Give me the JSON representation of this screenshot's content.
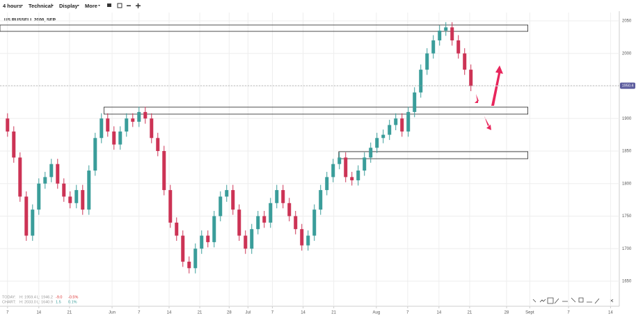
{
  "toolbar": {
    "menus": [
      "4 hours",
      "Technical",
      "Display",
      "More"
    ]
  },
  "chart_data": {
    "type": "candlestick",
    "title": "US RUSSELL 2000, SEP",
    "x": [
      0,
      1,
      2,
      3,
      4,
      5,
      6,
      7,
      8,
      9,
      10,
      11,
      12,
      13,
      14,
      15,
      16,
      17,
      18,
      19,
      20,
      21,
      22,
      23,
      24,
      25,
      26,
      27,
      28,
      29,
      30,
      31,
      32,
      33,
      34,
      35,
      36,
      37,
      38,
      39,
      40,
      41,
      42,
      43,
      44,
      45,
      46,
      47,
      48,
      49,
      50,
      51,
      52,
      53,
      54,
      55,
      56,
      57,
      58,
      59,
      60,
      61,
      62,
      63,
      64,
      65,
      66,
      67,
      68,
      69,
      70,
      71,
      72,
      73,
      74
    ],
    "open": [
      1900,
      1880,
      1840,
      1780,
      1720,
      1760,
      1800,
      1810,
      1830,
      1800,
      1780,
      1770,
      1790,
      1760,
      1820,
      1870,
      1900,
      1880,
      1860,
      1880,
      1900,
      1895,
      1910,
      1900,
      1870,
      1850,
      1790,
      1740,
      1720,
      1680,
      1670,
      1700,
      1720,
      1710,
      1750,
      1780,
      1790,
      1760,
      1720,
      1700,
      1730,
      1750,
      1740,
      1770,
      1790,
      1770,
      1750,
      1730,
      1705,
      1720,
      1760,
      1790,
      1810,
      1830,
      1840,
      1810,
      1805,
      1820,
      1840,
      1855,
      1870,
      1875,
      1890,
      1900,
      1880,
      1910,
      1940,
      1975,
      2000,
      2020,
      2035,
      2040,
      2020,
      2000,
      1975
    ],
    "high": [
      1908,
      1888,
      1848,
      1788,
      1768,
      1808,
      1818,
      1838,
      1838,
      1808,
      1788,
      1798,
      1798,
      1828,
      1878,
      1908,
      1908,
      1888,
      1888,
      1908,
      1908,
      1918,
      1918,
      1908,
      1878,
      1858,
      1798,
      1748,
      1728,
      1688,
      1708,
      1728,
      1728,
      1758,
      1788,
      1798,
      1798,
      1768,
      1728,
      1738,
      1758,
      1758,
      1778,
      1798,
      1798,
      1778,
      1758,
      1738,
      1728,
      1768,
      1798,
      1818,
      1838,
      1848,
      1848,
      1818,
      1828,
      1848,
      1863,
      1878,
      1883,
      1898,
      1908,
      1908,
      1918,
      1948,
      1983,
      2008,
      2028,
      2043,
      2048,
      2048,
      2028,
      2008,
      1983
    ],
    "low": [
      1872,
      1832,
      1772,
      1712,
      1712,
      1752,
      1792,
      1802,
      1792,
      1772,
      1762,
      1762,
      1752,
      1752,
      1812,
      1862,
      1872,
      1852,
      1852,
      1872,
      1887,
      1887,
      1892,
      1862,
      1842,
      1782,
      1732,
      1712,
      1672,
      1662,
      1662,
      1692,
      1702,
      1702,
      1742,
      1772,
      1752,
      1712,
      1692,
      1692,
      1722,
      1732,
      1732,
      1762,
      1762,
      1742,
      1722,
      1697,
      1697,
      1712,
      1752,
      1782,
      1802,
      1822,
      1802,
      1797,
      1797,
      1812,
      1832,
      1847,
      1862,
      1867,
      1882,
      1872,
      1872,
      1902,
      1932,
      1967,
      1992,
      2012,
      2027,
      2012,
      1992,
      1967,
      1942
    ],
    "close": [
      1880,
      1840,
      1780,
      1720,
      1760,
      1800,
      1810,
      1830,
      1800,
      1780,
      1770,
      1790,
      1760,
      1820,
      1870,
      1900,
      1880,
      1860,
      1880,
      1900,
      1895,
      1910,
      1900,
      1870,
      1850,
      1790,
      1740,
      1720,
      1680,
      1670,
      1700,
      1720,
      1710,
      1750,
      1780,
      1790,
      1760,
      1720,
      1700,
      1730,
      1750,
      1740,
      1770,
      1790,
      1770,
      1750,
      1730,
      1705,
      1720,
      1760,
      1790,
      1810,
      1830,
      1840,
      1810,
      1805,
      1820,
      1840,
      1855,
      1870,
      1875,
      1890,
      1900,
      1880,
      1910,
      1940,
      1975,
      2000,
      2020,
      2035,
      2040,
      2020,
      2000,
      1975,
      1950
    ],
    "up_color": "#3a9d9a",
    "down_color": "#cc3355",
    "xlim": [
      -1.2,
      97.7
    ],
    "xticks": [
      {
        "value": 0,
        "label": "7"
      },
      {
        "value": 5,
        "label": "14"
      },
      {
        "value": 9.9,
        "label": "21"
      },
      {
        "value": 16.7,
        "label": "Jun"
      },
      {
        "value": 21,
        "label": "7"
      },
      {
        "value": 25.8,
        "label": "14"
      },
      {
        "value": 30.7,
        "label": "21"
      },
      {
        "value": 35.4,
        "label": "28"
      },
      {
        "value": 38.4,
        "label": "Jul"
      },
      {
        "value": 42.3,
        "label": "7"
      },
      {
        "value": 47.2,
        "label": "14"
      },
      {
        "value": 52.1,
        "label": "21"
      },
      {
        "value": 58.9,
        "label": "Aug"
      },
      {
        "value": 63.9,
        "label": "7"
      },
      {
        "value": 68.9,
        "label": "14"
      },
      {
        "value": 73.8,
        "label": "21"
      },
      {
        "value": 79.7,
        "label": "28"
      },
      {
        "value": 83.4,
        "label": "Sept"
      },
      {
        "value": 89.6,
        "label": "7"
      },
      {
        "value": 96.3,
        "label": "14"
      }
    ],
    "ylim": [
      1611.5,
      2062.8
    ],
    "yticks": [
      1650,
      1700,
      1750,
      1800,
      1850,
      1900,
      1950,
      2000,
      2050
    ],
    "grid": true,
    "last_price": 1950.4,
    "zones": [
      {
        "x": [
          -1.2,
          83.1
        ],
        "y": [
          2033.9,
          2043.6
        ]
      },
      {
        "x": [
          15.4,
          83.1
        ],
        "y": [
          1906.7,
          1917.4
        ]
      },
      {
        "x": [
          52.9,
          83.1
        ],
        "y": [
          1838.2,
          1849
        ]
      }
    ],
    "info": [
      [
        "TODAY:",
        "H: 1959.4",
        "L: 1946.2",
        "-9.0",
        "-0.5%"
      ],
      [
        "CHART:",
        "H: 2033.0",
        "L: 1640.9",
        "1.5",
        "0.1%"
      ]
    ]
  }
}
